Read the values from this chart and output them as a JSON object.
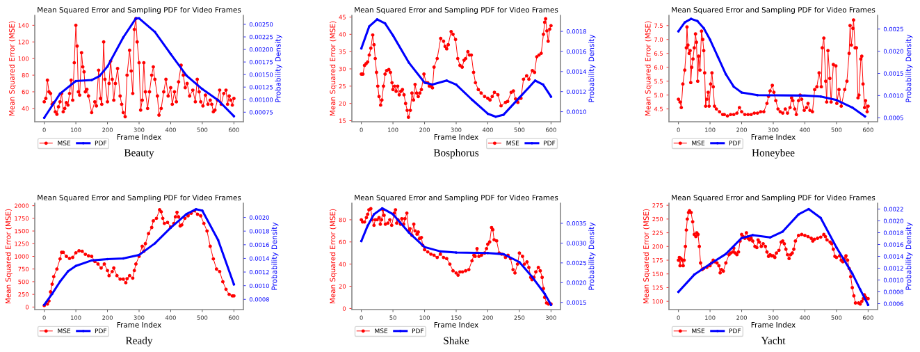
{
  "chart_data": [
    {
      "type": "line",
      "title": "Mean Squared Error and Sampling PDF for Video Frames",
      "xlabel": "Frame Index",
      "ylabel": "Mean Squared Error (MSE)",
      "y2label": "Probability Density",
      "annotations": [
        "Beauty"
      ],
      "legend": "bottom left",
      "marker": "circle",
      "xlim": [
        -30,
        630
      ],
      "xticks": [
        0,
        100,
        200,
        300,
        400,
        500,
        600
      ],
      "ylim": [
        24,
        152
      ],
      "yticks": [
        40,
        60,
        80,
        100,
        120,
        140
      ],
      "y2lim": [
        0.00056,
        0.00268
      ],
      "y2ticks": [
        {
          "value": 0.00075,
          "label": "0.00075"
        },
        {
          "value": 0.001,
          "label": "0.00100"
        },
        {
          "value": 0.00125,
          "label": "0.00125"
        },
        {
          "value": 0.0015,
          "label": "0.00150"
        },
        {
          "value": 0.00175,
          "label": "0.00175"
        },
        {
          "value": 0.002,
          "label": "0.00200"
        },
        {
          "value": 0.00225,
          "label": "0.00225"
        },
        {
          "value": 0.0025,
          "label": "0.00250"
        }
      ],
      "series": [
        {
          "name": "MSE",
          "color": "#ff0000",
          "x": [
            0,
            5,
            10,
            15,
            20,
            25,
            30,
            35,
            40,
            45,
            50,
            55,
            60,
            65,
            70,
            75,
            80,
            85,
            90,
            95,
            100,
            104,
            108,
            112,
            118,
            122,
            126,
            130,
            135,
            140,
            150,
            160,
            165,
            172,
            178,
            182,
            188,
            192,
            200,
            205,
            210,
            215,
            220,
            225,
            232,
            240,
            245,
            250,
            256,
            262,
            270,
            275,
            280,
            285,
            290,
            294,
            300,
            305,
            310,
            315,
            320,
            327,
            333,
            340,
            345,
            350,
            358,
            363,
            370,
            378,
            385,
            392,
            400,
            405,
            412,
            418,
            425,
            433,
            440,
            446,
            452,
            460,
            470,
            478,
            484,
            490,
            495,
            502,
            510,
            518,
            525,
            530,
            535,
            540,
            548,
            555,
            560,
            568,
            575,
            580,
            585,
            590,
            595,
            600
          ],
          "values": [
            48,
            52,
            74,
            60,
            58,
            45,
            47,
            36,
            33,
            42,
            48,
            58,
            36,
            40,
            47,
            44,
            58,
            74,
            50,
            95,
            140,
            115,
            60,
            56,
            107,
            90,
            84,
            60,
            63,
            55,
            35,
            48,
            43,
            86,
            52,
            45,
            120,
            75,
            48,
            70,
            97,
            75,
            50,
            70,
            88,
            55,
            45,
            35,
            30,
            80,
            110,
            85,
            58,
            135,
            148,
            120,
            95,
            38,
            50,
            95,
            60,
            40,
            60,
            80,
            90,
            75,
            55,
            32,
            40,
            60,
            75,
            55,
            65,
            45,
            60,
            48,
            72,
            92,
            80,
            65,
            70,
            55,
            62,
            48,
            75,
            60,
            48,
            43,
            56,
            45,
            50,
            45,
            36,
            38,
            50,
            62,
            45,
            58,
            62,
            45,
            55,
            50,
            44,
            52
          ]
        },
        {
          "name": "PDF",
          "color": "#0000ff",
          "axis": "y2",
          "x": [
            0,
            50,
            100,
            150,
            175,
            200,
            250,
            290,
            300,
            350,
            400,
            450,
            500,
            550,
            600
          ],
          "values": [
            0.00064,
            0.00112,
            0.00137,
            0.00139,
            0.00147,
            0.00166,
            0.00224,
            0.00262,
            0.00262,
            0.00235,
            0.00191,
            0.00148,
            0.00121,
            0.00099,
            0.00067
          ]
        }
      ]
    },
    {
      "type": "line",
      "title": "Mean Squared Error and Sampling PDF for Video Frames",
      "xlabel": "Frame Index",
      "ylabel": "Mean Squared Error (MSE)",
      "y2label": "Probability Density",
      "annotations": [
        "Bosphorus"
      ],
      "legend": "bottom right",
      "marker": "circle",
      "xlim": [
        -30,
        630
      ],
      "xticks": [
        0,
        100,
        200,
        300,
        400,
        500,
        600
      ],
      "ylim": [
        14.7,
        45.5
      ],
      "yticks": [
        15,
        20,
        25,
        30,
        35,
        40,
        45
      ],
      "y2lim": [
        0.0009,
        0.00196
      ],
      "y2ticks": [
        {
          "value": 0.001,
          "label": "0.0010"
        },
        {
          "value": 0.0012,
          "label": "0.0012"
        },
        {
          "value": 0.0014,
          "label": "0.0014"
        },
        {
          "value": 0.0016,
          "label": "0.0016"
        },
        {
          "value": 0.0018,
          "label": "0.0018"
        }
      ],
      "series": [
        {
          "name": "MSE",
          "color": "#ff0000",
          "x": [
            0,
            5,
            10,
            15,
            20,
            25,
            30,
            36,
            40,
            44,
            48,
            52,
            56,
            61,
            65,
            70,
            75,
            80,
            87,
            92,
            97,
            100,
            105,
            110,
            115,
            120,
            125,
            130,
            135,
            140,
            145,
            149,
            155,
            160,
            165,
            170,
            175,
            180,
            185,
            190,
            198,
            205,
            210,
            215,
            220,
            225,
            230,
            240,
            251,
            260,
            265,
            270,
            275,
            284,
            290,
            298,
            305,
            312,
            319,
            325,
            330,
            337,
            342,
            348,
            355,
            361,
            370,
            379,
            390,
            400,
            407,
            414,
            421,
            432,
            442,
            456,
            463,
            474,
            481,
            488,
            495,
            502,
            505,
            513,
            523,
            530,
            541,
            548,
            555,
            562,
            569,
            576,
            580,
            583,
            587,
            591,
            596,
            600
          ],
          "values": [
            28.5,
            28.5,
            31,
            31.5,
            32,
            34,
            36,
            39.8,
            37,
            33,
            29,
            25,
            22,
            19.5,
            21,
            25,
            28.5,
            29.5,
            29.8,
            29,
            26,
            24,
            25,
            23.5,
            25,
            22.5,
            23.5,
            24,
            22.5,
            20,
            18,
            16,
            18,
            23,
            21,
            25.5,
            23,
            22,
            23,
            24,
            28.5,
            26,
            26,
            25,
            25,
            24.5,
            30.5,
            33,
            38.8,
            38,
            36.5,
            35.8,
            37,
            40.8,
            40,
            38.5,
            33,
            31,
            30.5,
            32.5,
            33,
            35,
            34,
            34,
            29,
            26,
            24,
            23,
            22,
            21.5,
            21,
            22,
            23.2,
            22.5,
            19.3,
            20.3,
            20.6,
            23.2,
            23.6,
            21.3,
            20.3,
            21.6,
            21.5,
            27,
            28,
            27,
            29.5,
            29,
            33.5,
            34,
            34.5,
            40,
            43.5,
            44.5,
            41,
            38,
            41.5,
            42.5
          ]
        },
        {
          "name": "PDF",
          "color": "#0000ff",
          "axis": "y2",
          "x": [
            0,
            25,
            50,
            75,
            100,
            150,
            200,
            225,
            270,
            300,
            350,
            400,
            425,
            450,
            500,
            550,
            575,
            600
          ],
          "values": [
            0.00163,
            0.00185,
            0.00192,
            0.00188,
            0.00176,
            0.00149,
            0.00129,
            0.00127,
            0.00131,
            0.00127,
            0.00112,
            0.00098,
            0.00095,
            0.00097,
            0.00114,
            0.00131,
            0.00127,
            0.00115
          ]
        }
      ]
    },
    {
      "type": "line",
      "title": "Mean Squared Error and Sampling PDF for Video Frames",
      "xlabel": "Frame Index",
      "ylabel": "Mean Squared Error (MSE)",
      "y2label": "Probability Density",
      "annotations": [
        "Honeybee"
      ],
      "legend": "bottom left",
      "marker": "circle",
      "xlim": [
        -30,
        630
      ],
      "xticks": [
        0,
        100,
        200,
        300,
        400,
        500,
        600
      ],
      "ylim": [
        4.04,
        7.87
      ],
      "yticks": [
        4.5,
        {
          "value": 5,
          "label": "5.0"
        },
        5.5,
        {
          "value": 6,
          "label": "6.0"
        },
        6.5,
        {
          "value": 7,
          "label": "7.0"
        },
        7.5
      ],
      "y2lim": [
        0.00041,
        0.00281
      ],
      "y2ticks": [
        {
          "value": 0.0005,
          "label": "0.0005"
        },
        {
          "value": 0.001,
          "label": "0.0010"
        },
        {
          "value": 0.0015,
          "label": "0.0015"
        },
        {
          "value": 0.002,
          "label": "0.0020"
        },
        {
          "value": 0.0025,
          "label": "0.0025"
        }
      ],
      "series": [
        {
          "name": "MSE",
          "color": "#ff0000",
          "x": [
            0,
            5,
            9,
            14,
            20,
            25,
            27,
            30,
            34,
            37,
            39,
            42,
            46,
            50,
            54,
            57,
            61,
            64,
            68,
            73,
            77,
            80,
            83,
            86,
            90,
            94,
            97,
            102,
            106,
            110,
            114,
            120,
            130,
            140,
            145,
            155,
            165,
            175,
            185,
            193,
            200,
            210,
            220,
            230,
            240,
            250,
            260,
            270,
            280,
            285,
            290,
            297,
            302,
            308,
            315,
            322,
            330,
            338,
            345,
            353,
            358,
            362,
            368,
            373,
            380,
            385,
            390,
            398,
            405,
            410,
            416,
            424,
            431,
            438,
            445,
            452,
            455,
            460,
            466,
            469,
            473,
            479,
            483,
            490,
            498,
            501,
            508,
            515,
            526,
            533,
            540,
            543,
            547,
            552,
            554,
            559,
            563,
            568,
            571,
            577,
            580,
            584,
            589,
            592,
            597,
            600
          ],
          "values": [
            4.85,
            4.75,
            4.55,
            5.4,
            5.9,
            6.7,
            7.45,
            6.8,
            6.5,
            6.6,
            5.45,
            6.0,
            6.3,
            6.7,
            7.2,
            6.9,
            5.5,
            6.4,
            5.9,
            7.3,
            7.0,
            6.6,
            5.8,
            4.6,
            4.85,
            5.1,
            4.6,
            5.4,
            5.8,
            5.3,
            4.6,
            4.5,
            4.4,
            4.3,
            4.3,
            4.25,
            4.3,
            4.3,
            4.35,
            4.55,
            4.4,
            4.3,
            4.3,
            4.3,
            4.35,
            4.35,
            4.4,
            4.4,
            4.7,
            4.95,
            5.15,
            5.35,
            5.1,
            4.8,
            4.5,
            4.4,
            4.35,
            4.5,
            4.35,
            4.55,
            4.9,
            4.8,
            4.5,
            4.3,
            4.8,
            5.0,
            4.85,
            4.45,
            4.55,
            4.7,
            4.45,
            4.4,
            5.2,
            5.3,
            5.8,
            5.3,
            6.7,
            7.05,
            5.5,
            4.75,
            6.6,
            5.6,
            4.75,
            6.1,
            6.05,
            4.7,
            5.2,
            4.6,
            5.2,
            5.5,
            6.5,
            7.5,
            6.8,
            7.4,
            7.7,
            6.7,
            6.7,
            4.9,
            5.0,
            6.3,
            6.4,
            5.4,
            4.55,
            4.8,
            4.4,
            4.6
          ]
        },
        {
          "name": "PDF",
          "color": "#0000ff",
          "axis": "y2",
          "x": [
            0,
            20,
            40,
            60,
            80,
            100,
            125,
            150,
            175,
            200,
            250,
            400,
            450,
            500,
            550,
            590
          ],
          "values": [
            0.00245,
            0.00265,
            0.00273,
            0.00268,
            0.00252,
            0.00226,
            0.00187,
            0.00148,
            0.0012,
            0.00107,
            0.00101,
            0.001,
            0.00098,
            0.0009,
            0.00073,
            0.00053
          ]
        }
      ]
    },
    {
      "type": "line",
      "title": "Mean Squared Error and Sampling PDF for Video Frames",
      "xlabel": "Frame Index",
      "ylabel": "Mean Squared Error (MSE)",
      "y2label": "Probability Density",
      "annotations": [
        "Ready"
      ],
      "legend": "bottom left",
      "marker": "circle",
      "xlim": [
        -30,
        630
      ],
      "xticks": [
        0,
        100,
        200,
        300,
        400,
        500,
        600
      ],
      "ylim": [
        -50,
        2050
      ],
      "yticks": [
        0,
        250,
        500,
        750,
        1000,
        1250,
        1500,
        1750,
        2000
      ],
      "y2lim": [
        0.00065,
        0.00221
      ],
      "y2ticks": [
        {
          "value": 0.0008,
          "label": "0.0008"
        },
        {
          "value": 0.001,
          "label": "0.0010"
        },
        {
          "value": 0.0012,
          "label": "0.0012"
        },
        {
          "value": 0.0014,
          "label": "0.0014"
        },
        {
          "value": 0.0016,
          "label": "0.0016"
        },
        {
          "value": 0.0018,
          "label": "0.0018"
        },
        {
          "value": 0.002,
          "label": "0.0020"
        }
      ],
      "series": [
        {
          "name": "MSE",
          "color": "#ff0000",
          "x": [
            0,
            10,
            15,
            20,
            25,
            30,
            40,
            50,
            55,
            60,
            70,
            80,
            90,
            100,
            110,
            120,
            130,
            140,
            150,
            160,
            170,
            180,
            190,
            200,
            205,
            215,
            220,
            230,
            240,
            250,
            258,
            262,
            270,
            280,
            285,
            290,
            300,
            310,
            315,
            320,
            330,
            340,
            345,
            355,
            365,
            370,
            375,
            380,
            390,
            400,
            410,
            415,
            420,
            425,
            430,
            435,
            445,
            455,
            465,
            475,
            485,
            495,
            505,
            515,
            525,
            535,
            545,
            555,
            565,
            575,
            585,
            595,
            600
          ],
          "values": [
            30,
            60,
            120,
            300,
            450,
            600,
            750,
            950,
            1080,
            1080,
            1000,
            960,
            980,
            1070,
            1110,
            1100,
            1040,
            1010,
            1000,
            900,
            850,
            770,
            850,
            720,
            620,
            700,
            770,
            620,
            550,
            550,
            480,
            560,
            620,
            570,
            720,
            850,
            1000,
            1200,
            1100,
            1250,
            1450,
            1570,
            1700,
            1750,
            1920,
            1880,
            1750,
            1650,
            1670,
            1580,
            1650,
            1780,
            1870,
            1780,
            1600,
            1620,
            1750,
            1800,
            1850,
            1900,
            1830,
            1800,
            1650,
            1500,
            1200,
            950,
            750,
            700,
            500,
            350,
            250,
            220,
            220
          ]
        },
        {
          "name": "PDF",
          "color": "#0000ff",
          "axis": "y2",
          "x": [
            0,
            25,
            50,
            75,
            100,
            150,
            200,
            250,
            300,
            350,
            400,
            450,
            480,
            500,
            550,
            600
          ],
          "values": [
            0.00072,
            0.00088,
            0.00106,
            0.00121,
            0.00129,
            0.00137,
            0.00139,
            0.0014,
            0.00145,
            0.00162,
            0.00185,
            0.00205,
            0.00212,
            0.0021,
            0.00167,
            0.00102
          ]
        }
      ]
    },
    {
      "type": "line",
      "title": "Mean Squared Error and Sampling PDF for Video Frames",
      "xlabel": "Frame Index",
      "ylabel": "Mean Squared Error (MSE)",
      "y2label": "Probability Density",
      "annotations": [
        "Shake"
      ],
      "legend": "bottom left",
      "marker": "circle",
      "xlim": [
        -15,
        315
      ],
      "xticks": [
        0,
        50,
        100,
        150,
        200,
        250,
        300
      ],
      "ylim": [
        -1,
        95
      ],
      "yticks": [
        0,
        20,
        40,
        60,
        80
      ],
      "y2lim": [
        0.00132,
        0.00401
      ],
      "y2ticks": [
        {
          "value": 0.0015,
          "label": "0.0015"
        },
        {
          "value": 0.002,
          "label": "0.0020"
        },
        {
          "value": 0.0025,
          "label": "0.0025"
        },
        {
          "value": 0.003,
          "label": "0.0030"
        },
        {
          "value": 0.0035,
          "label": "0.0035"
        }
      ],
      "series": [
        {
          "name": "MSE",
          "color": "#ff0000",
          "x": [
            0,
            2,
            5,
            8,
            10,
            12,
            15,
            17,
            20,
            22,
            25,
            28,
            30,
            32,
            34,
            36,
            38,
            42,
            45,
            48,
            52,
            54,
            56,
            58,
            62,
            64,
            67,
            69,
            72,
            75,
            77,
            80,
            83,
            85,
            88,
            90,
            92,
            95,
            97,
            100,
            105,
            110,
            115,
            120,
            125,
            130,
            135,
            140,
            145,
            150,
            153,
            156,
            160,
            165,
            170,
            175,
            178,
            180,
            183,
            186,
            190,
            195,
            198,
            200,
            203,
            206,
            208,
            210,
            214,
            218,
            222,
            228,
            232,
            236,
            240,
            243,
            247,
            250,
            255,
            258,
            262,
            265,
            268,
            270,
            273,
            276,
            280,
            283,
            286,
            288,
            290,
            293,
            296,
            300
          ],
          "values": [
            80,
            78,
            78,
            82,
            85,
            89,
            90,
            80,
            75,
            80,
            80,
            82,
            76,
            80,
            89,
            84,
            76,
            77,
            80,
            75,
            86,
            89,
            77,
            80,
            76,
            81,
            76,
            81,
            86,
            70,
            72,
            66,
            76,
            70,
            67,
            69,
            63,
            64,
            57,
            53,
            51,
            49,
            48,
            46,
            49,
            46,
            45,
            40,
            34,
            32,
            30,
            33,
            33,
            34,
            35,
            43,
            48,
            47,
            54,
            47,
            48,
            50,
            54,
            58,
            60,
            73,
            71,
            62,
            61,
            50,
            49,
            46,
            48,
            45,
            35,
            32,
            40,
            50,
            47,
            40,
            42,
            37,
            28,
            26,
            28,
            33,
            37,
            34,
            28,
            18,
            10,
            5,
            4,
            4
          ]
        },
        {
          "name": "PDF",
          "color": "#0000ff",
          "axis": "y2",
          "x": [
            0,
            10,
            20,
            33,
            50,
            75,
            100,
            125,
            150,
            200,
            225,
            250,
            270,
            290,
            300
          ],
          "values": [
            0.00305,
            0.00344,
            0.00373,
            0.00388,
            0.00373,
            0.00327,
            0.0029,
            0.00279,
            0.00276,
            0.00275,
            0.00272,
            0.00252,
            0.00215,
            0.00172,
            0.00144
          ]
        }
      ]
    },
    {
      "type": "line",
      "title": "Mean Squared Error and Sampling PDF for Video Frames",
      "xlabel": "Frame Index",
      "ylabel": "Mean Squared Error (MSE)",
      "y2label": "Probability Density",
      "annotations": [
        "Yacht"
      ],
      "legend": "bottom left",
      "marker": "circle",
      "xlim": [
        -30,
        630
      ],
      "xticks": [
        0,
        100,
        200,
        300,
        400,
        500,
        600
      ],
      "ylim": [
        85,
        279
      ],
      "yticks": [
        100,
        125,
        150,
        175,
        200,
        225,
        250,
        275
      ],
      "y2lim": [
        0.0005,
        0.0023
      ],
      "y2ticks": [
        {
          "value": 0.0006,
          "label": "0.0006"
        },
        {
          "value": 0.0008,
          "label": "0.0008"
        },
        {
          "value": 0.001,
          "label": "0.0010"
        },
        {
          "value": 0.0012,
          "label": "0.0012"
        },
        {
          "value": 0.0014,
          "label": "0.0014"
        },
        {
          "value": 0.0016,
          "label": "0.0016"
        },
        {
          "value": 0.0018,
          "label": "0.0018"
        },
        {
          "value": 0.002,
          "label": "0.0020"
        },
        {
          "value": 0.0022,
          "label": "0.0022"
        }
      ],
      "series": [
        {
          "name": "MSE",
          "color": "#ff0000",
          "x": [
            0,
            3,
            5,
            8,
            12,
            15,
            18,
            22,
            25,
            28,
            32,
            35,
            40,
            45,
            50,
            55,
            58,
            62,
            66,
            70,
            75,
            80,
            90,
            100,
            105,
            110,
            115,
            122,
            128,
            132,
            136,
            142,
            150,
            160,
            165,
            172,
            175,
            180,
            185,
            190,
            195,
            200,
            205,
            210,
            215,
            220,
            225,
            230,
            235,
            242,
            248,
            252,
            256,
            262,
            268,
            275,
            280,
            285,
            290,
            295,
            300,
            305,
            310,
            318,
            325,
            330,
            335,
            340,
            345,
            350,
            355,
            360,
            365,
            370,
            380,
            390,
            400,
            410,
            420,
            425,
            430,
            440,
            450,
            460,
            465,
            470,
            480,
            485,
            490,
            495,
            500,
            510,
            515,
            520,
            525,
            530,
            535,
            540,
            545,
            550,
            555,
            560,
            570,
            575,
            580,
            585,
            588,
            592,
            596,
            600
          ],
          "values": [
            175,
            180,
            165,
            178,
            175,
            165,
            175,
            200,
            230,
            250,
            262,
            265,
            262,
            245,
            222,
            218,
            225,
            222,
            200,
            170,
            158,
            160,
            162,
            165,
            170,
            175,
            172,
            170,
            165,
            152,
            158,
            155,
            170,
            185,
            188,
            190,
            197,
            188,
            185,
            190,
            210,
            222,
            218,
            215,
            225,
            215,
            212,
            215,
            210,
            200,
            198,
            212,
            208,
            200,
            205,
            200,
            190,
            182,
            185,
            183,
            183,
            180,
            188,
            193,
            208,
            210,
            205,
            195,
            185,
            178,
            185,
            188,
            195,
            210,
            220,
            222,
            220,
            218,
            215,
            210,
            213,
            215,
            217,
            222,
            218,
            212,
            208,
            205,
            195,
            182,
            180,
            183,
            175,
            172,
            178,
            183,
            175,
            160,
            145,
            125,
            110,
            97,
            97,
            95,
            100,
            105,
            112,
            108,
            105,
            105
          ]
        },
        {
          "name": "PDF",
          "color": "#0000ff",
          "axis": "y2",
          "x": [
            0,
            50,
            100,
            150,
            200,
            235,
            290,
            330,
            380,
            412,
            450,
            500,
            550,
            575,
            600
          ],
          "values": [
            0.0008,
            0.00109,
            0.00127,
            0.00144,
            0.00171,
            0.00176,
            0.00172,
            0.00182,
            0.00211,
            0.0022,
            0.00205,
            0.00155,
            0.00111,
            0.00084,
            0.00058
          ]
        }
      ]
    }
  ]
}
